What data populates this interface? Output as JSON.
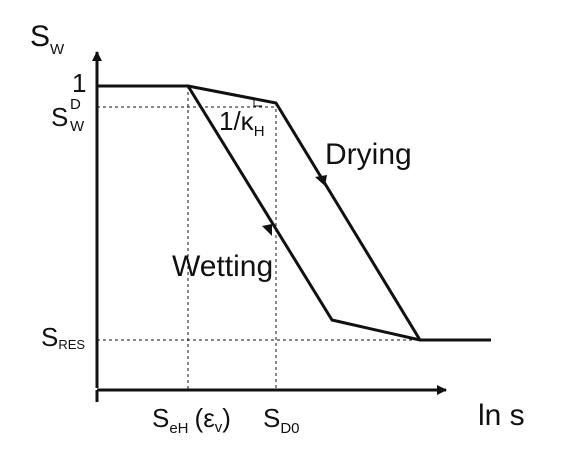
{
  "y_axis": {
    "symbol": "S",
    "subscript": "W"
  },
  "x_axis": {
    "label": "ln s"
  },
  "y_ticks": {
    "one": "1",
    "sw_d": {
      "base": "S",
      "sub": "W",
      "sup": "D"
    },
    "s_res": {
      "base": "S",
      "sub": "RES"
    }
  },
  "x_ticks": {
    "s_eh": {
      "base": "S",
      "sub": "eH",
      "suffix": "(ε",
      "suffix_sub": "v",
      "close": ")"
    },
    "s_d0": {
      "base": "S",
      "sub": "D0"
    }
  },
  "curves": {
    "drying": {
      "label": "Drying"
    },
    "wetting": {
      "label": "Wetting"
    }
  },
  "slope_label": {
    "text": "1/κ",
    "sub": "H"
  }
}
